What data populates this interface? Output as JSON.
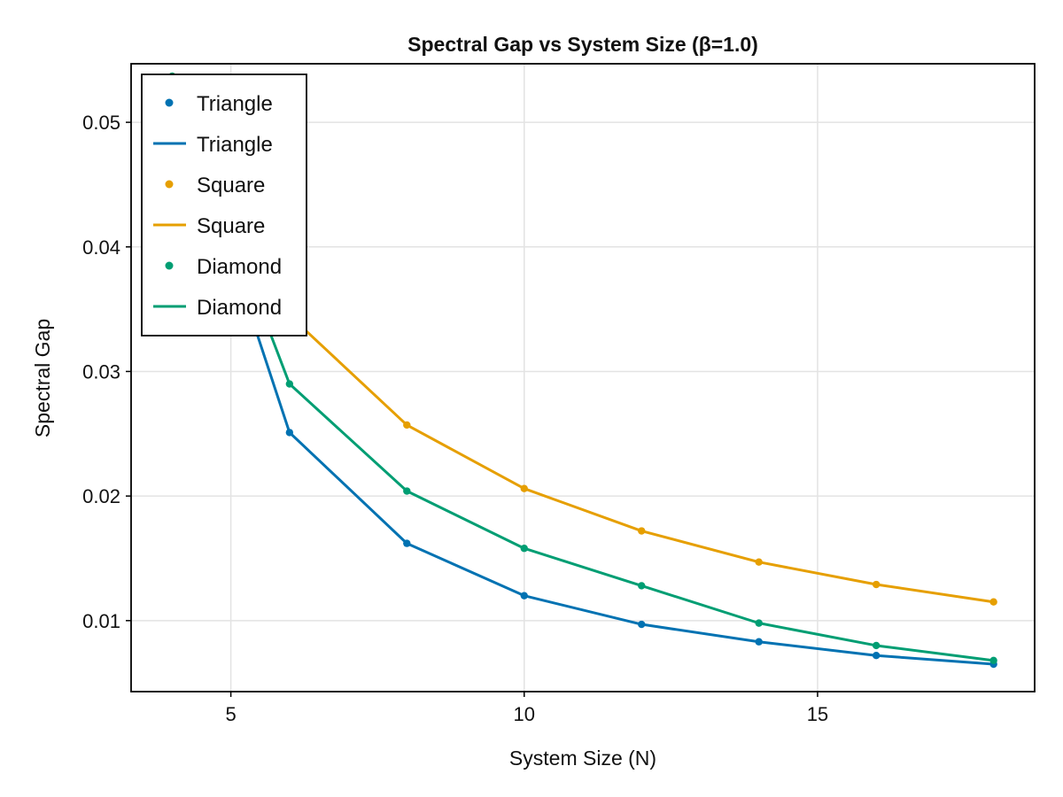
{
  "chart_data": {
    "type": "line",
    "title": "Spectral Gap vs System Size (β=1.0)",
    "xlabel": "System Size (N)",
    "ylabel": "Spectral Gap",
    "xlim": [
      3.3,
      18.7
    ],
    "ylim": [
      0.0043,
      0.0547
    ],
    "xticks": [
      5,
      10,
      15
    ],
    "xtick_labels": [
      "5",
      "10",
      "15"
    ],
    "yticks": [
      0.01,
      0.02,
      0.03,
      0.04,
      0.05
    ],
    "ytick_labels": [
      "0.01",
      "0.02",
      "0.03",
      "0.04",
      "0.05"
    ],
    "grid": true,
    "legend_position": "top-left",
    "x": [
      4,
      6,
      8,
      10,
      12,
      14,
      16,
      18
    ],
    "series": [
      {
        "name": "Triangle",
        "color": "#0072B2",
        "values": [
          0.0537,
          0.0251,
          0.0162,
          0.012,
          0.0097,
          0.0083,
          0.0072,
          0.0065
        ]
      },
      {
        "name": "Square",
        "color": "#E69F00",
        "values": [
          0.0537,
          0.0345,
          0.0257,
          0.0206,
          0.0172,
          0.0147,
          0.0129,
          0.0115
        ]
      },
      {
        "name": "Diamond",
        "color": "#009E73",
        "values": [
          0.0537,
          0.029,
          0.0204,
          0.0158,
          0.0128,
          0.0098,
          0.008,
          0.0068
        ]
      }
    ],
    "legend_entries": [
      {
        "label": "Triangle",
        "kind": "marker",
        "series": 0
      },
      {
        "label": "Triangle",
        "kind": "line",
        "series": 0
      },
      {
        "label": "Square",
        "kind": "marker",
        "series": 1
      },
      {
        "label": "Square",
        "kind": "line",
        "series": 1
      },
      {
        "label": "Diamond",
        "kind": "marker",
        "series": 2
      },
      {
        "label": "Diamond",
        "kind": "line",
        "series": 2
      }
    ]
  }
}
